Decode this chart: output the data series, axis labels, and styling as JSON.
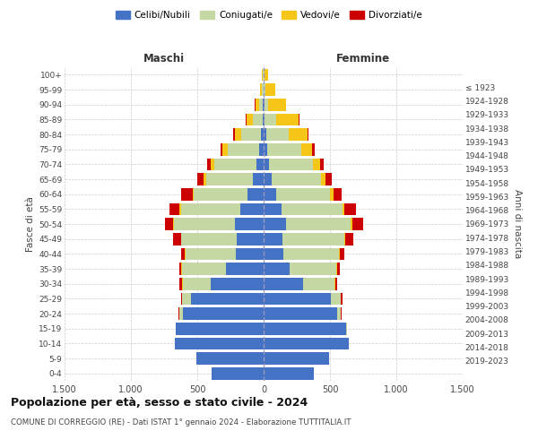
{
  "age_groups": [
    "0-4",
    "5-9",
    "10-14",
    "15-19",
    "20-24",
    "25-29",
    "30-34",
    "35-39",
    "40-44",
    "45-49",
    "50-54",
    "55-59",
    "60-64",
    "65-69",
    "70-74",
    "75-79",
    "80-84",
    "85-89",
    "90-94",
    "95-99",
    "100+"
  ],
  "birth_years": [
    "2019-2023",
    "2014-2018",
    "2009-2013",
    "2004-2008",
    "1999-2003",
    "1994-1998",
    "1989-1993",
    "1984-1988",
    "1979-1983",
    "1974-1978",
    "1969-1973",
    "1964-1968",
    "1959-1963",
    "1954-1958",
    "1949-1953",
    "1944-1948",
    "1939-1943",
    "1934-1938",
    "1929-1933",
    "1924-1928",
    "≤ 1923"
  ],
  "males": {
    "celibi": [
      390,
      510,
      670,
      660,
      610,
      545,
      400,
      285,
      210,
      205,
      215,
      175,
      125,
      80,
      55,
      35,
      18,
      9,
      4,
      2,
      1
    ],
    "coniugati": [
      0,
      0,
      0,
      5,
      25,
      70,
      210,
      330,
      380,
      415,
      460,
      450,
      400,
      355,
      315,
      235,
      150,
      75,
      28,
      9,
      3
    ],
    "vedovi": [
      0,
      0,
      0,
      0,
      0,
      0,
      4,
      4,
      4,
      4,
      8,
      8,
      12,
      18,
      28,
      38,
      50,
      45,
      32,
      18,
      7
    ],
    "divorziati": [
      0,
      0,
      0,
      0,
      4,
      8,
      18,
      18,
      28,
      60,
      60,
      75,
      85,
      50,
      28,
      18,
      9,
      4,
      2,
      1,
      0
    ]
  },
  "females": {
    "nubili": [
      375,
      490,
      640,
      620,
      555,
      505,
      295,
      195,
      148,
      140,
      168,
      138,
      92,
      63,
      40,
      27,
      18,
      9,
      4,
      2,
      1
    ],
    "coniugate": [
      0,
      0,
      0,
      5,
      28,
      75,
      240,
      355,
      420,
      465,
      485,
      455,
      410,
      370,
      330,
      255,
      168,
      84,
      32,
      11,
      3
    ],
    "vedove": [
      0,
      0,
      0,
      0,
      0,
      3,
      4,
      4,
      9,
      9,
      14,
      18,
      23,
      33,
      57,
      85,
      142,
      170,
      132,
      75,
      28
    ],
    "divorziate": [
      0,
      0,
      0,
      0,
      4,
      9,
      18,
      23,
      28,
      60,
      85,
      85,
      65,
      47,
      28,
      18,
      9,
      4,
      2,
      1,
      0
    ]
  },
  "colors": {
    "celibi": "#4472c4",
    "coniugati": "#c5d8a4",
    "vedovi": "#f5c518",
    "divorziati": "#cc0000"
  },
  "title": "Popolazione per età, sesso e stato civile - 2024",
  "subtitle": "COMUNE DI CORREGGIO (RE) - Dati ISTAT 1° gennaio 2024 - Elaborazione TUTTITALIA.IT",
  "xlabel_left": "Maschi",
  "xlabel_right": "Femmine",
  "ylabel_left": "Fasce di età",
  "ylabel_right": "Anni di nascita",
  "xlim": 1500,
  "background_color": "#ffffff",
  "legend_labels": [
    "Celibi/Nubili",
    "Coniugati/e",
    "Vedovi/e",
    "Divorziati/e"
  ]
}
